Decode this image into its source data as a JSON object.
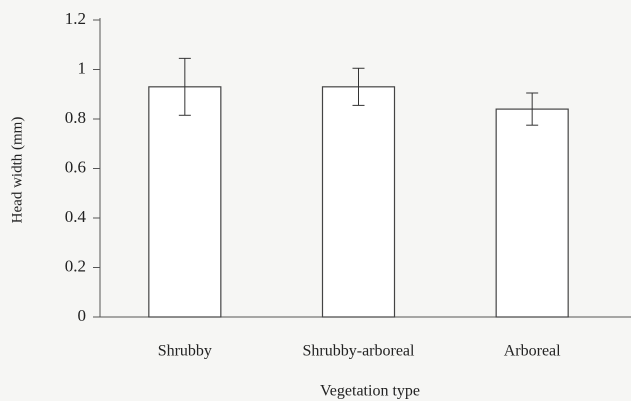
{
  "chart_data": {
    "type": "bar",
    "categories": [
      "Shrubby",
      "Shrubby-arboreal",
      "Arboreal"
    ],
    "values": [
      0.93,
      0.93,
      0.84
    ],
    "errors": [
      0.115,
      0.075,
      0.065
    ],
    "color": "#ffffff",
    "xlabel": "Vegetation type",
    "ylabel": "Head width (mm)",
    "ylim": [
      0,
      1.2
    ],
    "yticks": [
      0,
      0.2,
      0.4,
      0.6,
      0.8,
      1,
      1.2
    ],
    "grid": false
  }
}
